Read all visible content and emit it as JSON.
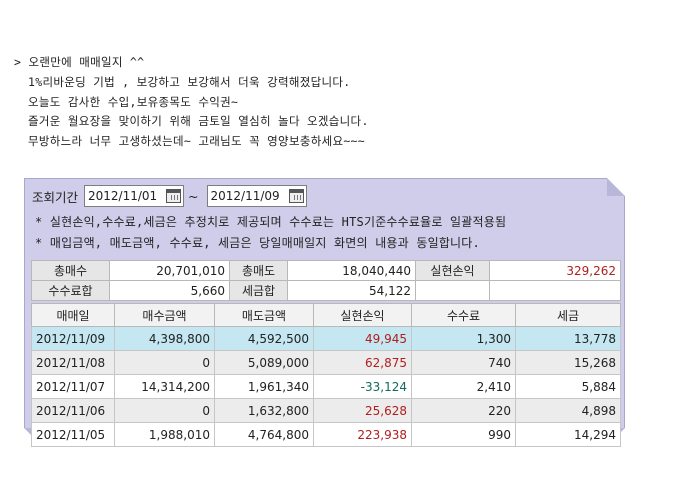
{
  "memo": {
    "lines": [
      "> 오랜만에 매매일지 ^^",
      "1%리바운딩 기법 , 보강하고 보강해서 더욱 강력해졌답니다.",
      "오늘도 감사한 수입,보유종목도 수익권~",
      "즐거운 월요장을 맞이하기 위해 금토일 열심히 놀다 오겠습니다.",
      "무방하느라 너무 고생하셨는데~ 고래님도 꼭 영양보충하세요~~~"
    ]
  },
  "query": {
    "label": "조회기간",
    "start_date": "2012/11/01",
    "separator": "~",
    "end_date": "2012/11/09",
    "calendar_icon": "calendar-icon"
  },
  "notes": [
    "* 실현손익,수수료,세금은 추정치로 제공되며 수수료는 HTS기준수수료율로 일괄적용됨",
    "* 매입금액, 매도금액, 수수료, 세금은 당일매매일지 화면의 내용과 동일합니다."
  ],
  "summary": {
    "total_buy_label": "총매수",
    "total_buy": "20,701,010",
    "total_sell_label": "총매도",
    "total_sell": "18,040,440",
    "realized_label": "실현손익",
    "realized": "329,262",
    "fee_label": "수수료합",
    "fee": "5,660",
    "tax_label": "세금합",
    "tax": "54,122"
  },
  "detail": {
    "headers": [
      "매매일",
      "매수금액",
      "매도금액",
      "실현손익",
      "수수료",
      "세금"
    ],
    "rows": [
      {
        "date": "2012/11/09",
        "buy": "4,398,800",
        "sell": "4,592,500",
        "pnl": "49,945",
        "fee": "1,300",
        "tax": "13,778"
      },
      {
        "date": "2012/11/08",
        "buy": "0",
        "sell": "5,089,000",
        "pnl": "62,875",
        "fee": "740",
        "tax": "15,268"
      },
      {
        "date": "2012/11/07",
        "buy": "14,314,200",
        "sell": "1,961,340",
        "pnl": "-33,124",
        "fee": "2,410",
        "tax": "5,884"
      },
      {
        "date": "2012/11/06",
        "buy": "0",
        "sell": "1,632,800",
        "pnl": "25,628",
        "fee": "220",
        "tax": "4,898"
      },
      {
        "date": "2012/11/05",
        "buy": "1,988,010",
        "sell": "4,764,800",
        "pnl": "223,938",
        "fee": "990",
        "tax": "14,294"
      }
    ]
  },
  "colors": {
    "panel_bg": "#cfcde9",
    "selected_row": "#c5e7f1",
    "profit": "#b01e1e",
    "loss": "#0f6a5c"
  }
}
